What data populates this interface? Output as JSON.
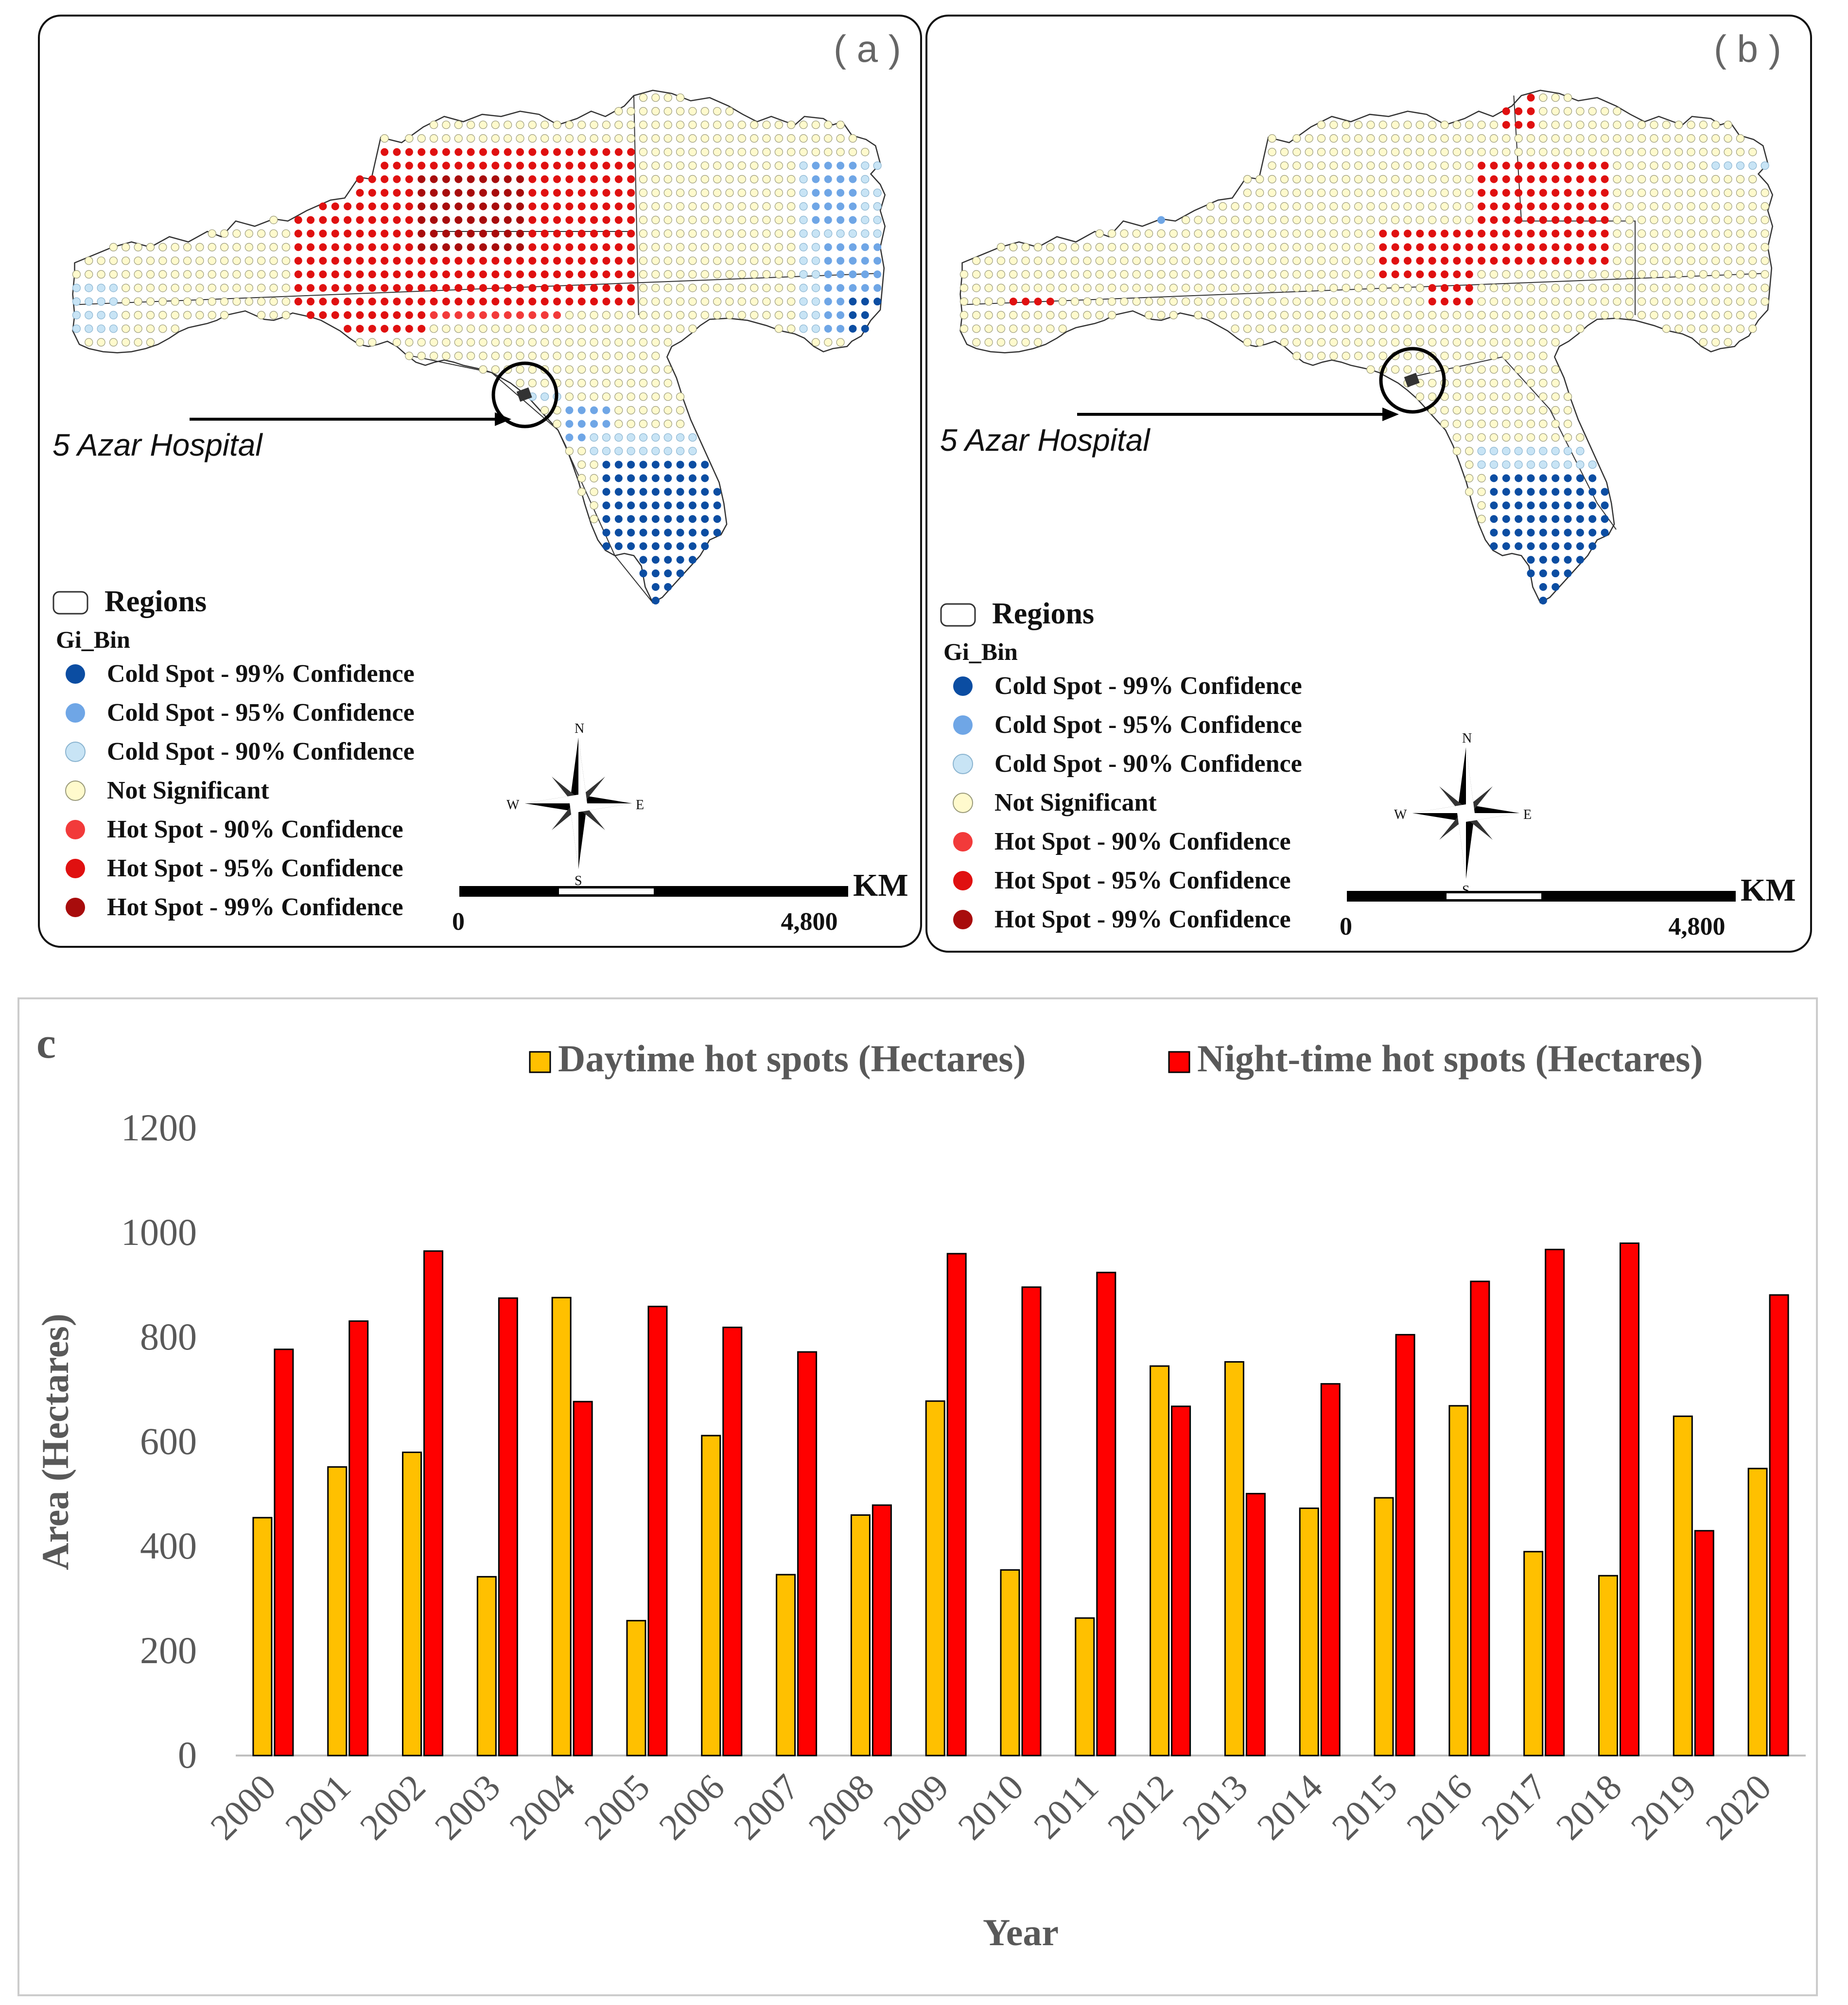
{
  "panel_a": {
    "label": "( a )",
    "hospital_label": "5 Azar Hospital",
    "legend": {
      "regions": "Regions",
      "gi_bin": "Gi_Bin",
      "items": [
        {
          "label": "Cold Spot - 99% Confidence",
          "color": "#0b4da2"
        },
        {
          "label": "Cold Spot - 95% Confidence",
          "color": "#6fa6e6"
        },
        {
          "label": "Cold Spot - 90% Confidence",
          "color": "#c8e4f5"
        },
        {
          "label": "Not Significant",
          "color": "#fffacd"
        },
        {
          "label": "Hot Spot - 90% Confidence",
          "color": "#f23a3a"
        },
        {
          "label": "Hot Spot - 95% Confidence",
          "color": "#e01010"
        },
        {
          "label": "Hot Spot - 99% Confidence",
          "color": "#a80c0c"
        }
      ]
    },
    "compass": {
      "n": "N",
      "e": "E",
      "s": "S",
      "w": "W"
    },
    "scale": {
      "unit": "KM",
      "start": "0",
      "end": "4,800"
    }
  },
  "panel_b": {
    "label": "( b )",
    "hospital_label": "5 Azar Hospital",
    "legend": {
      "regions": "Regions",
      "gi_bin": "Gi_Bin",
      "items": [
        {
          "label": "Cold Spot - 99% Confidence",
          "color": "#0b4da2"
        },
        {
          "label": "Cold Spot - 95% Confidence",
          "color": "#6fa6e6"
        },
        {
          "label": "Cold Spot - 90% Confidence",
          "color": "#c8e4f5"
        },
        {
          "label": "Not Significant",
          "color": "#fffacd"
        },
        {
          "label": "Hot Spot - 90% Confidence",
          "color": "#f23a3a"
        },
        {
          "label": "Hot Spot - 95% Confidence",
          "color": "#e01010"
        },
        {
          "label": "Hot Spot - 99% Confidence",
          "color": "#a80c0c"
        }
      ]
    },
    "compass": {
      "n": "N",
      "e": "E",
      "s": "S",
      "w": "W"
    },
    "scale": {
      "unit": "KM",
      "start": "0",
      "end": "4,800"
    }
  },
  "chart_data": {
    "type": "bar",
    "panel_label": "c",
    "title": "",
    "xlabel": "Year",
    "ylabel": "Area (Hectares)",
    "ylim": [
      0,
      1200
    ],
    "yticks": [
      0,
      200,
      400,
      600,
      800,
      1000,
      1200
    ],
    "grid": false,
    "legend_position": "top",
    "categories": [
      "2000",
      "2001",
      "2002",
      "2003",
      "2004",
      "2005",
      "2006",
      "2007",
      "2008",
      "2009",
      "2010",
      "2011",
      "2012",
      "2013",
      "2014",
      "2015",
      "2016",
      "2017",
      "2018",
      "2019",
      "2020"
    ],
    "series": [
      {
        "name": "Daytime hot spots (Hectares)",
        "color": "#ffc000",
        "values": [
          455,
          552,
          580,
          342,
          876,
          258,
          612,
          346,
          460,
          678,
          355,
          263,
          745,
          753,
          473,
          493,
          669,
          390,
          344,
          649,
          549
        ]
      },
      {
        "name": "Night-time hot spots (Hectares)",
        "color": "#ff0000",
        "values": [
          777,
          831,
          965,
          875,
          677,
          859,
          819,
          772,
          479,
          960,
          896,
          924,
          668,
          501,
          711,
          805,
          907,
          968,
          980,
          430,
          881
        ]
      }
    ]
  }
}
